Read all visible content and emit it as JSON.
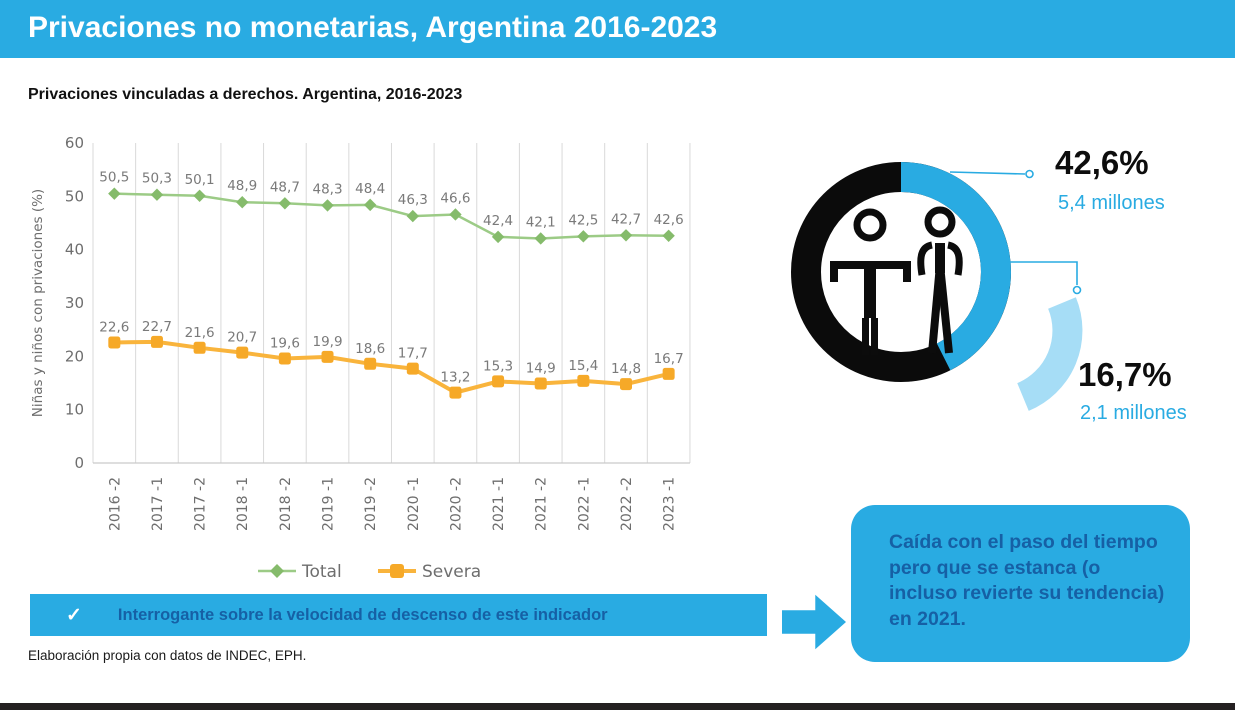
{
  "colors": {
    "accent_cyan": "#29ABE2",
    "light_blue_arc": "#A6DDF6",
    "dark_blue_text": "#1660A5",
    "ring_black": "#0b0b0b",
    "total_green": "#8FBF76",
    "severa_orange": "#F8B13A",
    "label_gray": "#7a7a7a",
    "footer_dark": "#242021"
  },
  "header": {
    "title": "Privaciones no monetarias, Argentina 2016-2023"
  },
  "subtitle": "Privaciones vinculadas a derechos. Argentina, 2016-2023",
  "chart_data": {
    "type": "line",
    "title": "Privaciones vinculadas a derechos. Argentina, 2016-2023",
    "xlabel": "",
    "ylabel": "Niñas y niños con privaciones (%)",
    "ylim": [
      0,
      60
    ],
    "yticks": [
      0,
      10,
      20,
      30,
      40,
      50,
      60
    ],
    "grid": "vertical",
    "legend_position": "bottom",
    "categories": [
      "2016 -2",
      "2017 -1",
      "2017 -2",
      "2018 -1",
      "2018 -2",
      "2019 -1",
      "2019 -2",
      "2020 -1",
      "2020 -2",
      "2021 -1",
      "2021 -2",
      "2022 -1",
      "2022 -2",
      "2023 -1"
    ],
    "series": [
      {
        "name": "Total",
        "marker": "diamond",
        "line_color": "#9CCB86",
        "marker_color": "#85BB6B",
        "values": [
          50.5,
          50.3,
          50.1,
          48.9,
          48.7,
          48.3,
          48.4,
          46.3,
          46.6,
          42.4,
          42.1,
          42.5,
          42.7,
          42.6
        ],
        "labels": [
          "50,5",
          "50,3",
          "50,1",
          "48,9",
          "48,7",
          "48,3",
          "48,4",
          "46,3",
          "46,6",
          "42,4",
          "42,1",
          "42,5",
          "42,7",
          "42,6"
        ]
      },
      {
        "name": "Severa",
        "marker": "square",
        "line_color": "#F9B43C",
        "marker_color": "#F6A928",
        "values": [
          22.6,
          22.7,
          21.6,
          20.7,
          19.6,
          19.9,
          18.6,
          17.7,
          13.2,
          15.3,
          14.9,
          15.4,
          14.8,
          16.7
        ],
        "labels": [
          "22,6",
          "22,7",
          "21,6",
          "20,7",
          "19,6",
          "19,9",
          "18,6",
          "17,7",
          "13,2",
          "15,3",
          "14,9",
          "15,4",
          "14,8",
          "16,7"
        ]
      }
    ]
  },
  "donut": {
    "main_pct": 42.6,
    "main_label": "42,6%",
    "main_sub": "5,4 millones",
    "secondary_pct": 16.7,
    "secondary_label": "16,7%",
    "secondary_sub": "2,1 millones",
    "icon": "children-icon"
  },
  "banner": {
    "check": "✓",
    "text": "Interrogante sobre la velocidad de descenso de este indicador"
  },
  "callout": {
    "text": "Caída con el paso del tiempo pero que se estanca (o incluso revierte su tendencia) en 2021."
  },
  "source": "Elaboración propia con datos de INDEC, EPH."
}
